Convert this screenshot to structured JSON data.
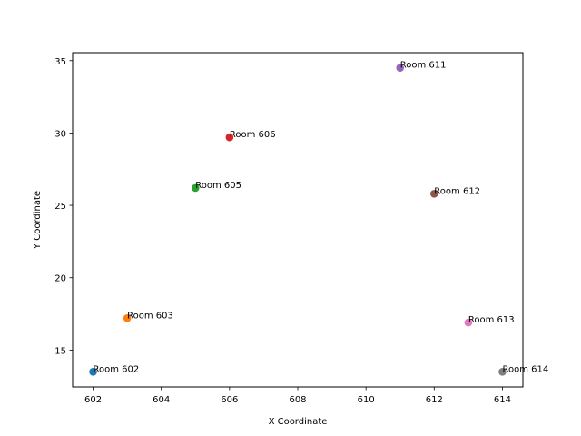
{
  "chart_data": {
    "type": "scatter",
    "title": "",
    "xlabel": "X Coordinate",
    "ylabel": "Y Coordinate",
    "xlim": [
      601.4,
      614.6
    ],
    "ylim": [
      12.45,
      35.55
    ],
    "x_ticks": [
      602,
      604,
      606,
      608,
      610,
      612,
      614
    ],
    "y_ticks": [
      15,
      20,
      25,
      30,
      35
    ],
    "grid": false,
    "legend": "none",
    "points": [
      {
        "label": "Room 602",
        "x": 602,
        "y": 13.5,
        "color": "#1f77b4"
      },
      {
        "label": "Room 603",
        "x": 603,
        "y": 17.2,
        "color": "#ff7f0e"
      },
      {
        "label": "Room 605",
        "x": 605,
        "y": 26.2,
        "color": "#2ca02c"
      },
      {
        "label": "Room 606",
        "x": 606,
        "y": 29.7,
        "color": "#d62728"
      },
      {
        "label": "Room 611",
        "x": 611,
        "y": 34.5,
        "color": "#9467bd"
      },
      {
        "label": "Room 612",
        "x": 612,
        "y": 25.8,
        "color": "#8c564b"
      },
      {
        "label": "Room 613",
        "x": 613,
        "y": 16.9,
        "color": "#e377c2"
      },
      {
        "label": "Room 614",
        "x": 614,
        "y": 13.5,
        "color": "#7f7f7f"
      }
    ]
  }
}
